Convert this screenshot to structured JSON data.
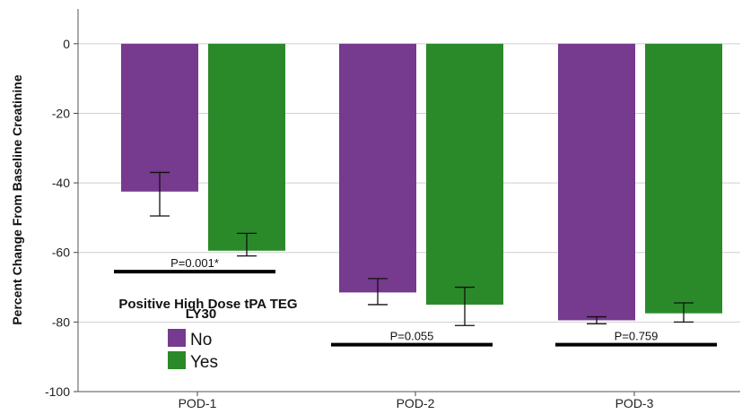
{
  "chart_data": {
    "type": "bar",
    "ylabel": "Percent Change From Baseline Creatinine",
    "xlabel": "",
    "ylim": [
      -100,
      10
    ],
    "yticks": [
      0,
      -20,
      -40,
      -60,
      -80,
      -100
    ],
    "grid": true,
    "categories": [
      "POD-1",
      "POD-2",
      "POD-3"
    ],
    "legend": {
      "title_lines": [
        "Positive High Dose tPA TEG",
        "LY30"
      ],
      "placement": "lower-left"
    },
    "series": [
      {
        "name": "No",
        "color": "#763a8e",
        "values": [
          -42.5,
          -71.5,
          -79.5
        ],
        "error_low": [
          -49.5,
          -75.0,
          -80.5
        ],
        "error_high": [
          -37.0,
          -67.5,
          -78.5
        ]
      },
      {
        "name": "Yes",
        "color": "#2a8a2a",
        "values": [
          -59.5,
          -75.0,
          -77.5
        ],
        "error_low": [
          -61.0,
          -81.0,
          -80.0
        ],
        "error_high": [
          -54.5,
          -70.0,
          -74.5
        ]
      }
    ],
    "annotations": [
      {
        "text": "P=0.001*",
        "category": "POD-1",
        "y": -65.5
      },
      {
        "text": "P=0.055",
        "category": "POD-2",
        "y": -86.5
      },
      {
        "text": "P=0.759",
        "category": "POD-3",
        "y": -86.5
      }
    ]
  }
}
